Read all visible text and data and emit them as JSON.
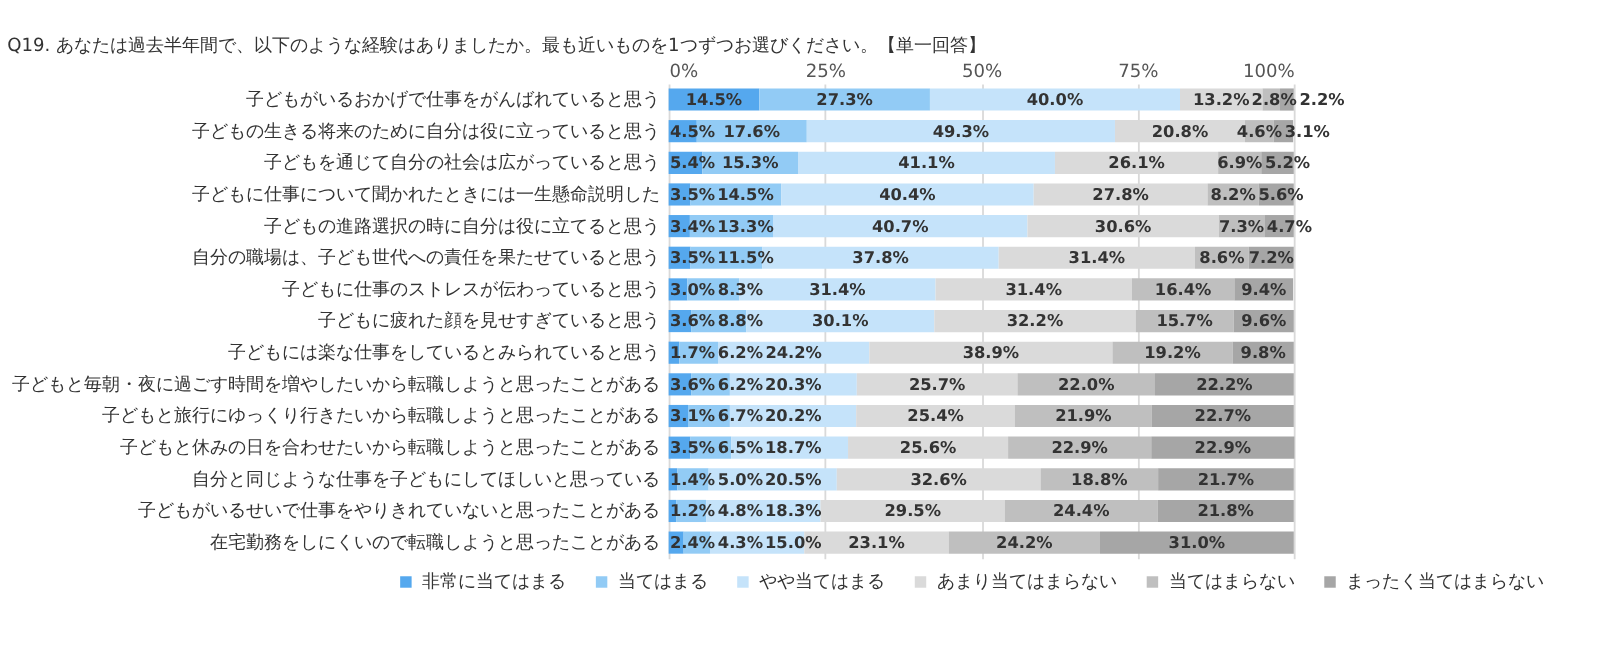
{
  "chart_data": {
    "type": "bar",
    "orientation": "horizontal",
    "stacked": true,
    "title": "Q19. あなたは過去半年間で、以下のような経験はありましたか。最も近いものを1つずつお選びください。【単一回答】",
    "categories": [
      "子どもがいるおかげで仕事をがんばれていると思う",
      "子どもの生きる将来のために自分は役に立っていると思う",
      "子どもを通じて自分の社会は広がっていると思う",
      "子どもに仕事について聞かれたときには一生懸命説明した",
      "子どもの進路選択の時に自分は役に立てると思う",
      "自分の職場は、子ども世代への責任を果たせていると思う",
      "子どもに仕事のストレスが伝わっていると思う",
      "子どもに疲れた顔を見せすぎていると思う",
      "子どもには楽な仕事をしているとみられていると思う",
      "子どもと毎朝・夜に過ごす時間を増やしたいから転職しようと思ったことがある",
      "子どもと旅行にゆっくり行きたいから転職しようと思ったことがある",
      "子どもと休みの日を合わせたいから転職しようと思ったことがある",
      "自分と同じような仕事を子どもにしてほしいと思っている",
      "子どもがいるせいで仕事をやりきれていないと思ったことがある",
      "在宅勤務をしにくいので転職しようと思ったことがある"
    ],
    "series": [
      {
        "name": "非常に当てはまる",
        "color": "#55a8ee",
        "values": [
          14.5,
          4.5,
          5.4,
          3.5,
          3.4,
          3.5,
          3.0,
          3.6,
          1.7,
          3.6,
          3.1,
          3.5,
          1.4,
          1.2,
          2.4
        ],
        "value_labels": [
          "14.5%",
          "4.5%",
          "5.4%",
          "3.5%",
          "3.4%",
          "3.5%",
          "3.0%",
          "3.6%",
          "1.7%",
          "3.6%",
          "3.1%",
          "3.5%",
          "1.4%",
          "1.2%",
          "2.4%"
        ]
      },
      {
        "name": "当てはまる",
        "color": "#92cbf5",
        "values": [
          27.3,
          17.6,
          15.3,
          14.5,
          13.3,
          11.5,
          8.3,
          8.8,
          6.2,
          6.2,
          6.7,
          6.5,
          5.0,
          4.8,
          4.3
        ],
        "value_labels": [
          "27.3%",
          "17.6%",
          "15.3%",
          "14.5%",
          "13.3%",
          "11.5%",
          "8.3%",
          "8.8%",
          "6.2%",
          "6.2%",
          "6.7%",
          "6.5%",
          "5.0%",
          "4.8%",
          "4.3%"
        ]
      },
      {
        "name": "やや当てはまる",
        "color": "#c5e3fa",
        "values": [
          40.0,
          49.3,
          41.1,
          40.4,
          40.7,
          37.8,
          31.4,
          30.1,
          24.2,
          20.3,
          20.2,
          18.7,
          20.5,
          18.3,
          15.0
        ],
        "value_labels": [
          "40.0%",
          "49.3%",
          "41.1%",
          "40.4%",
          "40.7%",
          "37.8%",
          "31.4%",
          "30.1%",
          "24.2%",
          "20.3%",
          "20.2%",
          "18.7%",
          "20.5%",
          "18.3%",
          "15.0%"
        ]
      },
      {
        "name": "あまり当てはまらない",
        "color": "#dadada",
        "values": [
          13.2,
          20.8,
          26.1,
          27.8,
          30.6,
          31.4,
          31.4,
          32.2,
          38.9,
          25.7,
          25.4,
          25.6,
          32.6,
          29.5,
          23.1
        ],
        "value_labels": [
          "13.2%",
          "20.8%",
          "26.1%",
          "27.8%",
          "30.6%",
          "31.4%",
          "31.4%",
          "32.2%",
          "38.9%",
          "25.7%",
          "25.4%",
          "25.6%",
          "32.6%",
          "29.5%",
          "23.1%"
        ]
      },
      {
        "name": "当てはまらない",
        "color": "#bfbfbf",
        "values": [
          2.8,
          4.6,
          6.9,
          8.2,
          7.3,
          8.6,
          16.4,
          15.7,
          19.2,
          22.0,
          21.9,
          22.9,
          18.8,
          24.4,
          24.2
        ],
        "value_labels": [
          "2.8%",
          "4.6%",
          "6.9%",
          "8.2%",
          "7.3%",
          "8.6%",
          "16.4%",
          "15.7%",
          "19.2%",
          "22.0%",
          "21.9%",
          "22.9%",
          "18.8%",
          "24.4%",
          "24.2%"
        ]
      },
      {
        "name": "まったく当てはまらない",
        "color": "#a6a6a6",
        "values": [
          2.2,
          3.1,
          5.2,
          5.6,
          4.7,
          7.2,
          9.4,
          9.6,
          9.8,
          22.2,
          22.7,
          22.9,
          21.7,
          21.8,
          31.0
        ],
        "value_labels": [
          "2.2%",
          "3.1%",
          "5.2%",
          "5.6%",
          "4.7%",
          "7.2%",
          "9.4%",
          "9.6%",
          "9.8%",
          "22.2%",
          "22.7%",
          "22.9%",
          "21.7%",
          "21.8%",
          "31.0%"
        ]
      }
    ],
    "xlim": [
      0,
      100
    ],
    "xticks": [
      {
        "value": 0,
        "label": "0%"
      },
      {
        "value": 25,
        "label": "25%"
      },
      {
        "value": 50,
        "label": "50%"
      },
      {
        "value": 75,
        "label": "75%"
      },
      {
        "value": 100,
        "label": "100%"
      }
    ],
    "grid": "x",
    "legend": "bottom"
  }
}
